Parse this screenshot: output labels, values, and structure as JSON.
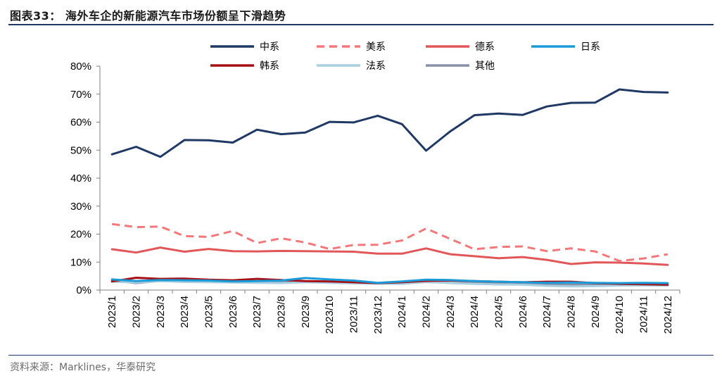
{
  "figure": {
    "title": "图表33：  海外车企的新能源汽车市场份额呈下滑趋势",
    "source": "资料来源：Marklines，华泰研究"
  },
  "chart_data": {
    "type": "line",
    "categories": [
      "2023/1",
      "2023/2",
      "2023/3",
      "2023/4",
      "2023/5",
      "2023/6",
      "2023/7",
      "2023/8",
      "2023/9",
      "2023/10",
      "2023/11",
      "2023/12",
      "2024/1",
      "2024/2",
      "2024/3",
      "2024/4",
      "2024/5",
      "2024/6",
      "2024/7",
      "2024/8",
      "2024/9",
      "2024/10",
      "2024/11",
      "2024/12"
    ],
    "ylim": [
      0,
      80
    ],
    "yticks": [
      0,
      10,
      20,
      30,
      40,
      50,
      60,
      70,
      80
    ],
    "ytick_labels": [
      "0%",
      "10%",
      "20%",
      "30%",
      "40%",
      "50%",
      "60%",
      "70%",
      "80%"
    ],
    "legend_position": "top",
    "series": [
      {
        "name": "中系",
        "color": "#1f3864",
        "dash": "solid",
        "values": [
          48.5,
          51.2,
          47.6,
          53.6,
          53.5,
          52.7,
          57.3,
          55.7,
          56.3,
          60.1,
          59.9,
          62.3,
          59.3,
          49.8,
          56.7,
          62.5,
          63.1,
          62.6,
          65.6,
          66.9,
          67.0,
          71.7,
          70.8,
          70.6
        ]
      },
      {
        "name": "美系",
        "color": "#f4787a",
        "dash": "dashed",
        "values": [
          23.6,
          22.5,
          22.7,
          19.3,
          19.0,
          21.1,
          16.8,
          18.5,
          17.0,
          14.7,
          16.1,
          16.2,
          17.7,
          22.0,
          18.3,
          14.6,
          15.4,
          15.6,
          13.9,
          14.9,
          13.8,
          10.4,
          11.3,
          12.8
        ]
      },
      {
        "name": "德系",
        "color": "#e15759",
        "dash": "solid",
        "values": [
          14.6,
          13.4,
          15.2,
          13.7,
          14.7,
          13.9,
          13.8,
          14.0,
          13.9,
          13.8,
          13.7,
          13.0,
          13.0,
          14.9,
          12.8,
          12.1,
          11.4,
          11.8,
          10.8,
          9.3,
          9.9,
          9.8,
          9.5,
          9.0
        ]
      },
      {
        "name": "日系",
        "color": "#1a9ad6",
        "dash": "solid",
        "values": [
          3.8,
          3.2,
          3.6,
          3.5,
          3.4,
          3.1,
          3.2,
          3.4,
          4.3,
          3.8,
          3.4,
          2.6,
          3.1,
          3.7,
          3.6,
          3.2,
          3.0,
          2.8,
          2.6,
          2.7,
          2.6,
          2.5,
          2.6,
          2.5
        ]
      },
      {
        "name": "韩系",
        "color": "#a50f15",
        "dash": "solid",
        "values": [
          3.1,
          4.4,
          4.0,
          4.1,
          3.7,
          3.5,
          4.0,
          3.6,
          3.2,
          3.1,
          2.8,
          2.5,
          2.8,
          3.3,
          3.4,
          3.2,
          3.0,
          2.8,
          3.0,
          3.0,
          2.5,
          2.2,
          2.1,
          1.9
        ]
      },
      {
        "name": "法系",
        "color": "#a9cfe0",
        "dash": "solid",
        "values": [
          3.0,
          2.7,
          3.2,
          2.9,
          2.8,
          2.7,
          2.6,
          2.5,
          2.8,
          2.6,
          2.4,
          2.3,
          2.2,
          3.0,
          2.5,
          2.2,
          2.0,
          1.9,
          1.5,
          1.3,
          1.4,
          1.6,
          1.7,
          1.6
        ]
      },
      {
        "name": "其他",
        "color": "#8a8fa8",
        "dash": "solid",
        "values": [
          3.4,
          2.5,
          3.3,
          3.0,
          3.2,
          3.2,
          2.7,
          3.0,
          2.8,
          2.7,
          2.6,
          2.4,
          2.3,
          2.9,
          2.6,
          2.5,
          2.4,
          2.3,
          2.1,
          1.9,
          2.0,
          2.0,
          2.1,
          1.9
        ]
      }
    ]
  }
}
